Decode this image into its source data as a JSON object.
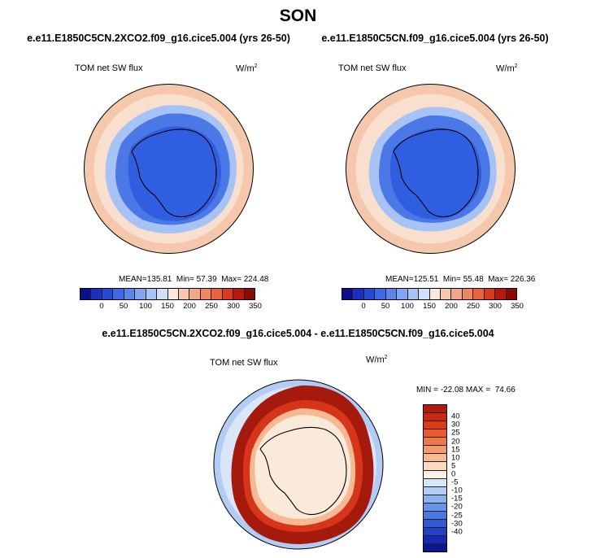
{
  "title": "SON",
  "panels": [
    {
      "case": "e.e11.E1850C5CN.2XCO2.f09_g16.cice5.004 (yrs 26-50)",
      "variable": "TOM net SW flux",
      "units_base": "W/m",
      "units_exp": "2",
      "stats": {
        "mean_label": "MEAN=",
        "mean": "135.81",
        "min_label": "Min=",
        "min": "57.39",
        "max_label": "Max=",
        "max": "224.48"
      }
    },
    {
      "case": "e.e11.E1850C5CN.f09_g16.cice5.004 (yrs 26-50)",
      "variable": "TOM net SW flux",
      "units_base": "W/m",
      "units_exp": "2",
      "stats": {
        "mean_label": "MEAN=",
        "mean": "125.51",
        "min_label": "Min=",
        "min": "55.48",
        "max_label": "Max=",
        "max": "226.36"
      }
    }
  ],
  "diff_panel": {
    "case": "e.e11.E1850C5CN.2XCO2.f09_g16.cice5.004 - e.e11.E1850C5CN.f09_g16.cice5.004",
    "variable": "TOM net SW flux",
    "units_base": "W/m",
    "units_exp": "2",
    "stats": {
      "min_label": "MIN =",
      "min": "-22.08",
      "max_label": "MAX =",
      "max": "74.66"
    }
  },
  "colorbar_abs": {
    "colors": [
      "#0a0f8f",
      "#1b2fc0",
      "#2749d8",
      "#3f68e6",
      "#5c85ea",
      "#82a5ef",
      "#a8c3f4",
      "#cfe0f8",
      "#fbe8dd",
      "#f6c8b0",
      "#f2a888",
      "#ef8660",
      "#e9633d",
      "#da3b1f",
      "#b8190d",
      "#8c0a04"
    ],
    "ticks": [
      "0",
      "50",
      "100",
      "150",
      "200",
      "250",
      "300",
      "350"
    ]
  },
  "colorbar_diff": {
    "colors": [
      "#b21b0c",
      "#c8280f",
      "#dd3a16",
      "#eb5a2a",
      "#f07a47",
      "#f29a6c",
      "#f5ba93",
      "#f9d9c0",
      "#fdf1e5",
      "#d8e6f8",
      "#b2ccf3",
      "#8cb1ee",
      "#6993e8",
      "#4a77e0",
      "#3359d4",
      "#2441c6",
      "#1729b0",
      "#0d1692"
    ],
    "ticks": [
      "40",
      "30",
      "25",
      "20",
      "15",
      "10",
      "5",
      "0",
      "-5",
      "-10",
      "-15",
      "-20",
      "-25",
      "-30",
      "-40"
    ]
  },
  "map_colors": {
    "ocean_warm": "#f5c8ad",
    "ocean_pale": "#f9dfcd",
    "ice_blue": "#2f5fe0",
    "ice_mid": "#4b78e6",
    "ring_light": "#a7c2f4",
    "diff_land": "#fbe9da",
    "diff_ring": "#a51a0c",
    "diff_ring2": "#d7351a"
  }
}
